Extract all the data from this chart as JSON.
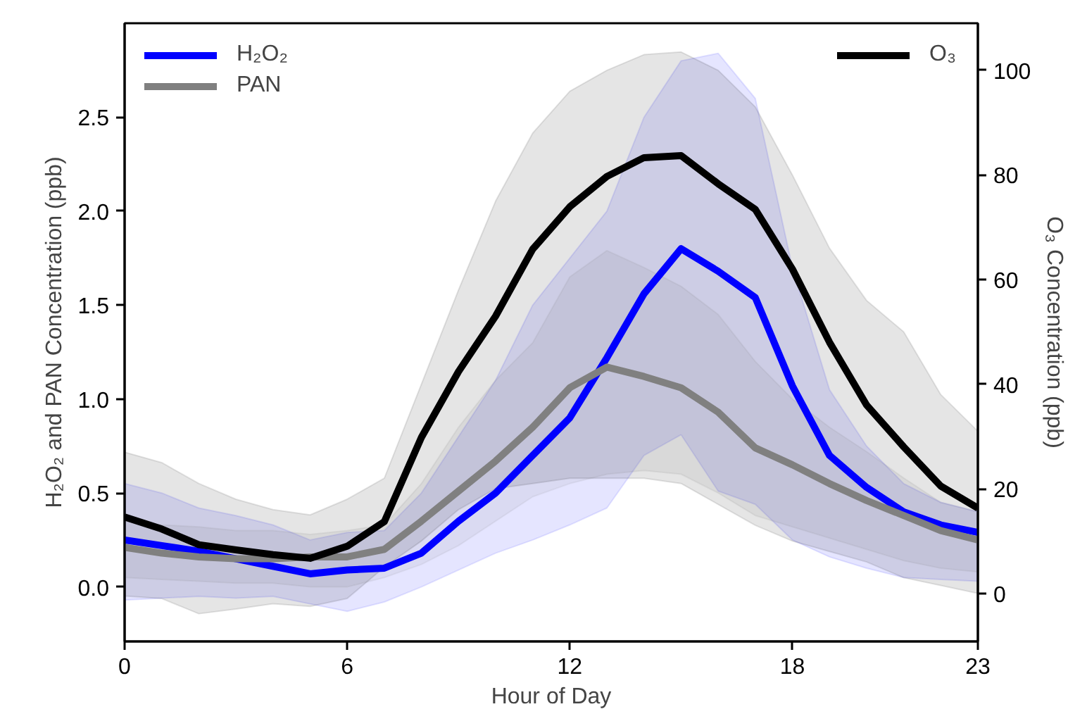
{
  "chart_data": {
    "type": "line",
    "xlabel": "Hour of Day",
    "ylabel": "H₂O₂ and PAN Concentration (ppb)",
    "y2label": "O₃ Concentration (ppb)",
    "x": [
      0,
      1,
      2,
      3,
      4,
      5,
      6,
      7,
      8,
      9,
      10,
      11,
      12,
      13,
      14,
      15,
      16,
      17,
      18,
      19,
      20,
      21,
      22,
      23
    ],
    "xlim": [
      0,
      23
    ],
    "xticks": [
      0,
      6,
      12,
      18,
      23
    ],
    "ylim": [
      -0.29,
      3.0
    ],
    "yticks": [
      {
        "value": 0,
        "label": "0.0"
      },
      0.5,
      {
        "value": 1,
        "label": "1.0"
      },
      1.5,
      {
        "value": 2,
        "label": "2.0"
      },
      2.5
    ],
    "y2lim": [
      -9.2,
      109
    ],
    "y2ticks": [
      0,
      20,
      40,
      60,
      80,
      100
    ],
    "legend": "top left",
    "grid": false,
    "series": [
      {
        "name": "H₂O₂",
        "color": "#0000ff",
        "values": [
          0.25,
          0.22,
          0.19,
          0.15,
          0.11,
          0.07,
          0.09,
          0.1,
          0.18,
          0.35,
          0.5,
          0.7,
          0.9,
          1.22,
          1.56,
          1.8,
          1.68,
          1.54,
          1.07,
          0.7,
          0.53,
          0.4,
          0.33,
          0.29
        ],
        "lower": [
          -0.07,
          -0.06,
          -0.05,
          -0.06,
          -0.05,
          -0.09,
          -0.13,
          -0.08,
          0.0,
          0.09,
          0.18,
          0.25,
          0.33,
          0.42,
          0.7,
          0.81,
          0.51,
          0.44,
          0.25,
          0.16,
          0.1,
          0.05,
          0.04,
          0.03
        ],
        "upper": [
          0.55,
          0.5,
          0.42,
          0.38,
          0.33,
          0.25,
          0.29,
          0.3,
          0.5,
          0.8,
          1.1,
          1.5,
          1.75,
          2.0,
          2.5,
          2.8,
          2.84,
          2.6,
          1.7,
          1.05,
          0.75,
          0.55,
          0.45,
          0.4
        ]
      },
      {
        "name": "PAN",
        "color": "#808080",
        "values": [
          0.21,
          0.18,
          0.16,
          0.15,
          0.15,
          0.16,
          0.16,
          0.2,
          0.35,
          0.51,
          0.67,
          0.85,
          1.06,
          1.17,
          1.12,
          1.06,
          0.93,
          0.74,
          0.65,
          0.55,
          0.46,
          0.38,
          0.3,
          0.25
        ],
        "lower": [
          0.05,
          0.04,
          0.03,
          0.02,
          0.02,
          0.0,
          0.0,
          0.05,
          0.12,
          0.22,
          0.35,
          0.48,
          0.55,
          0.6,
          0.62,
          0.6,
          0.5,
          0.38,
          0.32,
          0.26,
          0.2,
          0.14,
          0.1,
          0.08
        ],
        "upper": [
          0.35,
          0.33,
          0.32,
          0.3,
          0.3,
          0.28,
          0.3,
          0.33,
          0.55,
          0.85,
          1.1,
          1.3,
          1.65,
          1.79,
          1.7,
          1.6,
          1.45,
          1.2,
          1.0,
          0.85,
          0.72,
          0.58,
          0.45,
          0.4
        ]
      },
      {
        "name": "O₃",
        "color": "#000000",
        "axis": "y2",
        "values": [
          14.6,
          12.3,
          9.3,
          8.3,
          7.4,
          6.7,
          9.0,
          13.7,
          29.8,
          42.4,
          53,
          65.8,
          73.9,
          79.7,
          83.3,
          83.7,
          78.3,
          73.4,
          62,
          48,
          36,
          28,
          20.5,
          16.3
        ],
        "lower": [
          -0.5,
          -1,
          -3.9,
          -3,
          -2,
          -2.5,
          -1,
          5,
          10,
          16,
          20,
          21,
          22,
          22,
          22,
          21,
          17,
          13,
          10,
          8,
          6,
          3,
          1.5,
          0
        ],
        "upper": [
          27,
          25,
          21,
          18,
          16,
          15,
          18,
          22,
          40,
          58,
          75,
          88,
          96,
          100,
          103,
          103.5,
          100,
          93,
          80,
          66,
          56,
          50,
          38,
          31
        ]
      }
    ]
  }
}
